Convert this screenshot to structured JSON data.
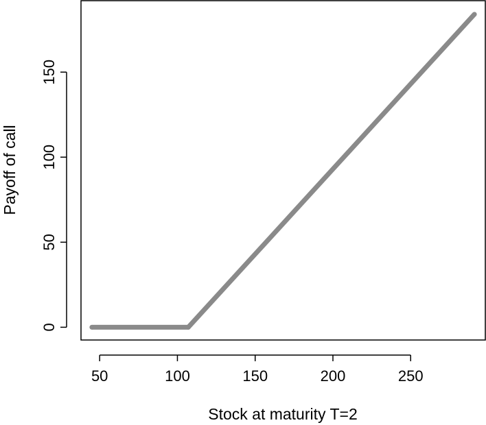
{
  "chart_data": {
    "type": "line",
    "title": "",
    "xlabel": "Stock at maturity T=2",
    "ylabel": "Payoff of call",
    "xlim": [
      38,
      298
    ],
    "ylim": [
      -7.5,
      192
    ],
    "x_ticks": [
      50,
      100,
      150,
      200,
      250
    ],
    "y_ticks": [
      0,
      50,
      100,
      150
    ],
    "x_tick_labels": [
      "50",
      "100",
      "150",
      "200",
      "250"
    ],
    "y_tick_labels": [
      "0",
      "50",
      "100",
      "150"
    ],
    "grid": false,
    "legend": "none",
    "line_color": "#8a8a8a",
    "series": [
      {
        "x": [
          45,
          107,
          291
        ],
        "values": [
          0,
          0,
          184
        ]
      }
    ]
  }
}
